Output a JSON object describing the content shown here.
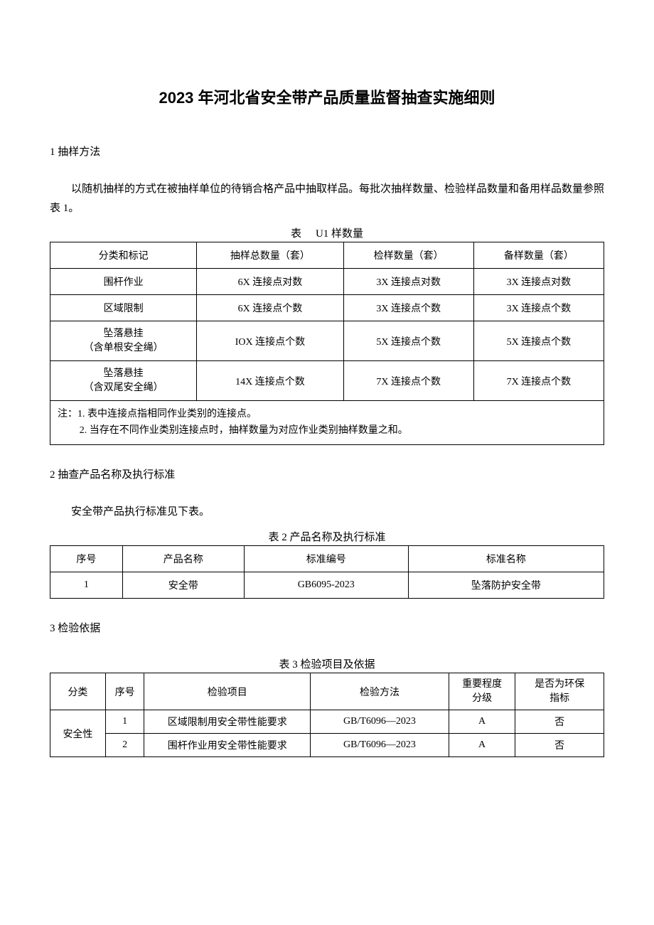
{
  "title": "2023 年河北省安全带产品质量监督抽查实施细则",
  "section1": {
    "heading": "1 抽样方法",
    "paragraph": "以随机抽样的方式在被抽样单位的待销合格产品中抽取样品。每批次抽样数量、检验样品数量和备用样品数量参照表 1。"
  },
  "table1": {
    "caption_left": "表",
    "caption_right": "U1 样数量",
    "headers": [
      "分类和标记",
      "抽样总数量（套）",
      "检样数量（套）",
      "备样数量（套）"
    ],
    "rows": [
      [
        "围杆作业",
        "6X 连接点对数",
        "3X 连接点对数",
        "3X 连接点对数"
      ],
      [
        "区域限制",
        "6X 连接点个数",
        "3X 连接点个数",
        "3X 连接点个数"
      ],
      [
        "坠落悬挂\n（含单根安全绳）",
        "IOX 连接点个数",
        "5X 连接点个数",
        "5X 连接点个数"
      ],
      [
        "坠落悬挂\n（含双尾安全绳）",
        "14X 连接点个数",
        "7X 连接点个数",
        "7X 连接点个数"
      ]
    ],
    "note_line1": "注：1. 表中连接点指相同作业类别的连接点。",
    "note_line2": "2. 当存在不同作业类别连接点时，抽样数量为对应作业类别抽样数量之和。"
  },
  "section2": {
    "heading": "2 抽查产品名称及执行标准",
    "paragraph": "安全带产品执行标准见下表。"
  },
  "table2": {
    "caption": "表 2 产品名称及执行标准",
    "headers": [
      "序号",
      "产品名称",
      "标准编号",
      "标准名称"
    ],
    "rows": [
      [
        "1",
        "安全带",
        "GB6095-2023",
        "坠落防护安全带"
      ]
    ],
    "col_widths": [
      "12%",
      "25%",
      "35%",
      "28%"
    ]
  },
  "section3": {
    "heading": "3 检验依据"
  },
  "table3": {
    "caption": "表 3 检验项目及依据",
    "headers": [
      "分类",
      "序号",
      "检验项目",
      "检验方法",
      "重要程度\n分级",
      "是否为环保\n指标"
    ],
    "category": "安全性",
    "rows": [
      [
        "1",
        "区域限制用安全带性能要求",
        "GB/T6096—2023",
        "A",
        "否"
      ],
      [
        "2",
        "围杆作业用安全带性能要求",
        "GB/T6096—2023",
        "A",
        "否"
      ]
    ],
    "col_widths": [
      "10%",
      "7%",
      "30%",
      "25%",
      "12%",
      "16%"
    ]
  },
  "colors": {
    "text": "#000000",
    "background": "#ffffff",
    "border": "#000000"
  }
}
